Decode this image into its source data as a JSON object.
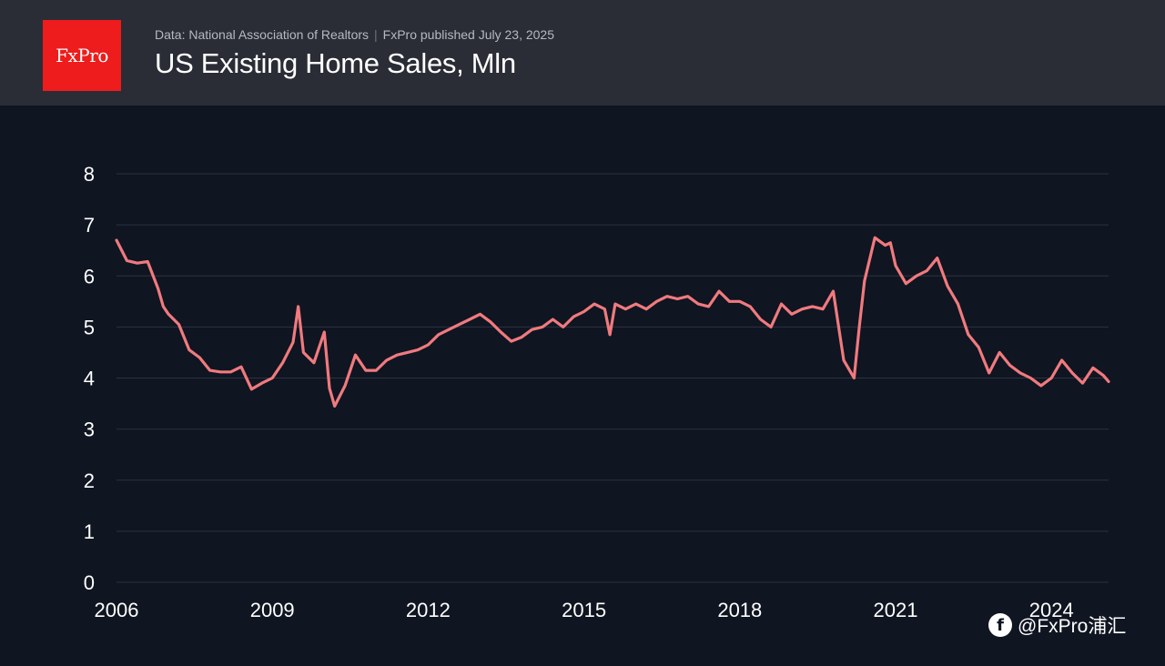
{
  "header": {
    "logo_text": "FxPro",
    "source": "Data: National Association of Realtors",
    "separator": "|",
    "published": "FxPro published July 23, 2025",
    "title": "US Existing Home Sales, Mln"
  },
  "watermark": {
    "icon": "fxpro-f-icon",
    "text": "@FxPro浦汇"
  },
  "colors": {
    "background": "#0f1521",
    "header": "#2a2d36",
    "logo": "#ee1c1c",
    "line": "#f07a7e",
    "grid": "#2b3140",
    "text": "#ffffff"
  },
  "chart_data": {
    "type": "line",
    "title": "US Existing Home Sales, Mln",
    "xlabel": "",
    "ylabel": "",
    "ylim": [
      0,
      8
    ],
    "yticks": [
      0,
      1,
      2,
      3,
      4,
      5,
      6,
      7,
      8
    ],
    "xlim": [
      2006,
      2025.1
    ],
    "xticks": [
      2006,
      2009,
      2012,
      2015,
      2018,
      2021,
      2024
    ],
    "grid": true,
    "series": [
      {
        "x": [
          2006.0,
          2006.2,
          2006.4,
          2006.6,
          2006.8,
          2006.9,
          2007.0,
          2007.2,
          2007.4,
          2007.6,
          2007.8,
          2008.0,
          2008.2,
          2008.4,
          2008.6,
          2008.8,
          2009.0,
          2009.2,
          2009.4,
          2009.5,
          2009.6,
          2009.8,
          2010.0,
          2010.1,
          2010.2,
          2010.4,
          2010.6,
          2010.8,
          2011.0,
          2011.2,
          2011.4,
          2011.6,
          2011.8,
          2012.0,
          2012.2,
          2012.4,
          2012.6,
          2012.8,
          2013.0,
          2013.2,
          2013.4,
          2013.6,
          2013.8,
          2014.0,
          2014.2,
          2014.4,
          2014.6,
          2014.8,
          2015.0,
          2015.2,
          2015.4,
          2015.5,
          2015.6,
          2015.8,
          2016.0,
          2016.2,
          2016.4,
          2016.6,
          2016.8,
          2017.0,
          2017.2,
          2017.4,
          2017.6,
          2017.8,
          2018.0,
          2018.2,
          2018.4,
          2018.6,
          2018.8,
          2019.0,
          2019.2,
          2019.4,
          2019.6,
          2019.8,
          2020.0,
          2020.2,
          2020.3,
          2020.4,
          2020.6,
          2020.8,
          2020.9,
          2021.0,
          2021.2,
          2021.4,
          2021.6,
          2021.8,
          2022.0,
          2022.2,
          2022.4,
          2022.6,
          2022.8,
          2023.0,
          2023.2,
          2023.4,
          2023.6,
          2023.8,
          2024.0,
          2024.2,
          2024.4,
          2024.6,
          2024.8,
          2025.0,
          2025.1
        ],
        "y": [
          6.7,
          6.3,
          6.25,
          6.28,
          5.75,
          5.4,
          5.25,
          5.05,
          4.55,
          4.4,
          4.15,
          4.12,
          4.12,
          4.22,
          3.78,
          3.9,
          4.0,
          4.3,
          4.7,
          5.4,
          4.5,
          4.3,
          4.9,
          3.8,
          3.45,
          3.85,
          4.45,
          4.15,
          4.15,
          4.35,
          4.45,
          4.5,
          4.55,
          4.65,
          4.85,
          4.95,
          5.05,
          5.15,
          5.25,
          5.1,
          4.9,
          4.72,
          4.8,
          4.95,
          5.0,
          5.15,
          5.0,
          5.2,
          5.3,
          5.45,
          5.35,
          4.85,
          5.45,
          5.35,
          5.45,
          5.35,
          5.5,
          5.6,
          5.55,
          5.6,
          5.45,
          5.4,
          5.7,
          5.5,
          5.5,
          5.4,
          5.15,
          5.0,
          5.45,
          5.25,
          5.35,
          5.4,
          5.35,
          5.7,
          4.35,
          4.0,
          5.0,
          5.9,
          6.75,
          6.6,
          6.65,
          6.2,
          5.85,
          6.0,
          6.1,
          6.35,
          5.8,
          5.45,
          4.85,
          4.6,
          4.1,
          4.5,
          4.25,
          4.1,
          4.0,
          3.85,
          4.0,
          4.35,
          4.1,
          3.9,
          4.2,
          4.05,
          3.93
        ]
      }
    ]
  }
}
